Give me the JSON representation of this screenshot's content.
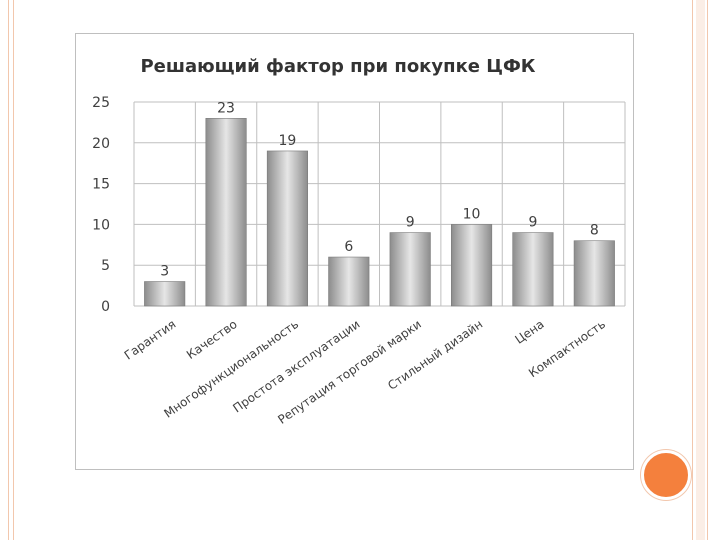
{
  "chart_data": {
    "type": "bar",
    "title": "Решающий фактор при покупке ЦФК",
    "categories": [
      "Гарантия",
      "Качество",
      "Многофункциональность",
      "Простота эксплуатации",
      "Репутация торговой марки",
      "Стильный дизайн",
      "Цена",
      "Компактность"
    ],
    "values": [
      3,
      23,
      19,
      6,
      9,
      10,
      9,
      8
    ],
    "ylim": [
      0,
      25
    ],
    "yticks": [
      0,
      5,
      10,
      15,
      20,
      25
    ],
    "grid": true,
    "legend": "none",
    "colors": {
      "bar_light": "#e6e6e6",
      "bar_dark": "#8c8c8c",
      "grid": "#bfbfbf"
    }
  }
}
